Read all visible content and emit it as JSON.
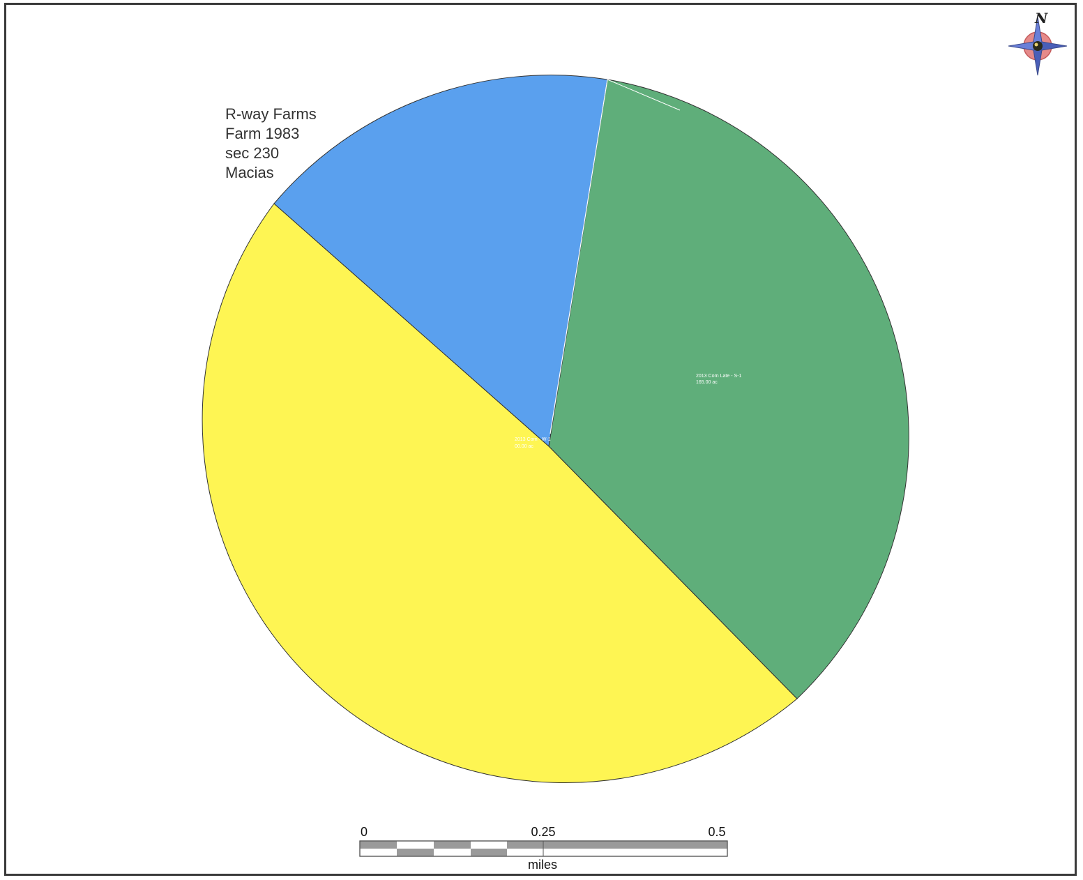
{
  "map_title_block": {
    "lines": [
      "R-way Farms",
      "Farm 1983",
      "sec 230",
      "Macias"
    ]
  },
  "field_labels": {
    "green_field_line1": "2013 Corn Late - S-1",
    "green_field_line2": "165.00 ac",
    "center_line1": "2013 Corn - W-1",
    "center_line2": "00.00 ac"
  },
  "fields": [
    {
      "name": "blue-field",
      "color": "#5aa0ee"
    },
    {
      "name": "green-field",
      "color": "#5fae7a"
    },
    {
      "name": "yellow-field",
      "color": "#fef553"
    }
  ],
  "north_arrow": {
    "letter": "N",
    "icon": "compass-rose-icon"
  },
  "scale_bar": {
    "labels": [
      "0",
      "0.25",
      "0.5"
    ],
    "units": "miles"
  }
}
